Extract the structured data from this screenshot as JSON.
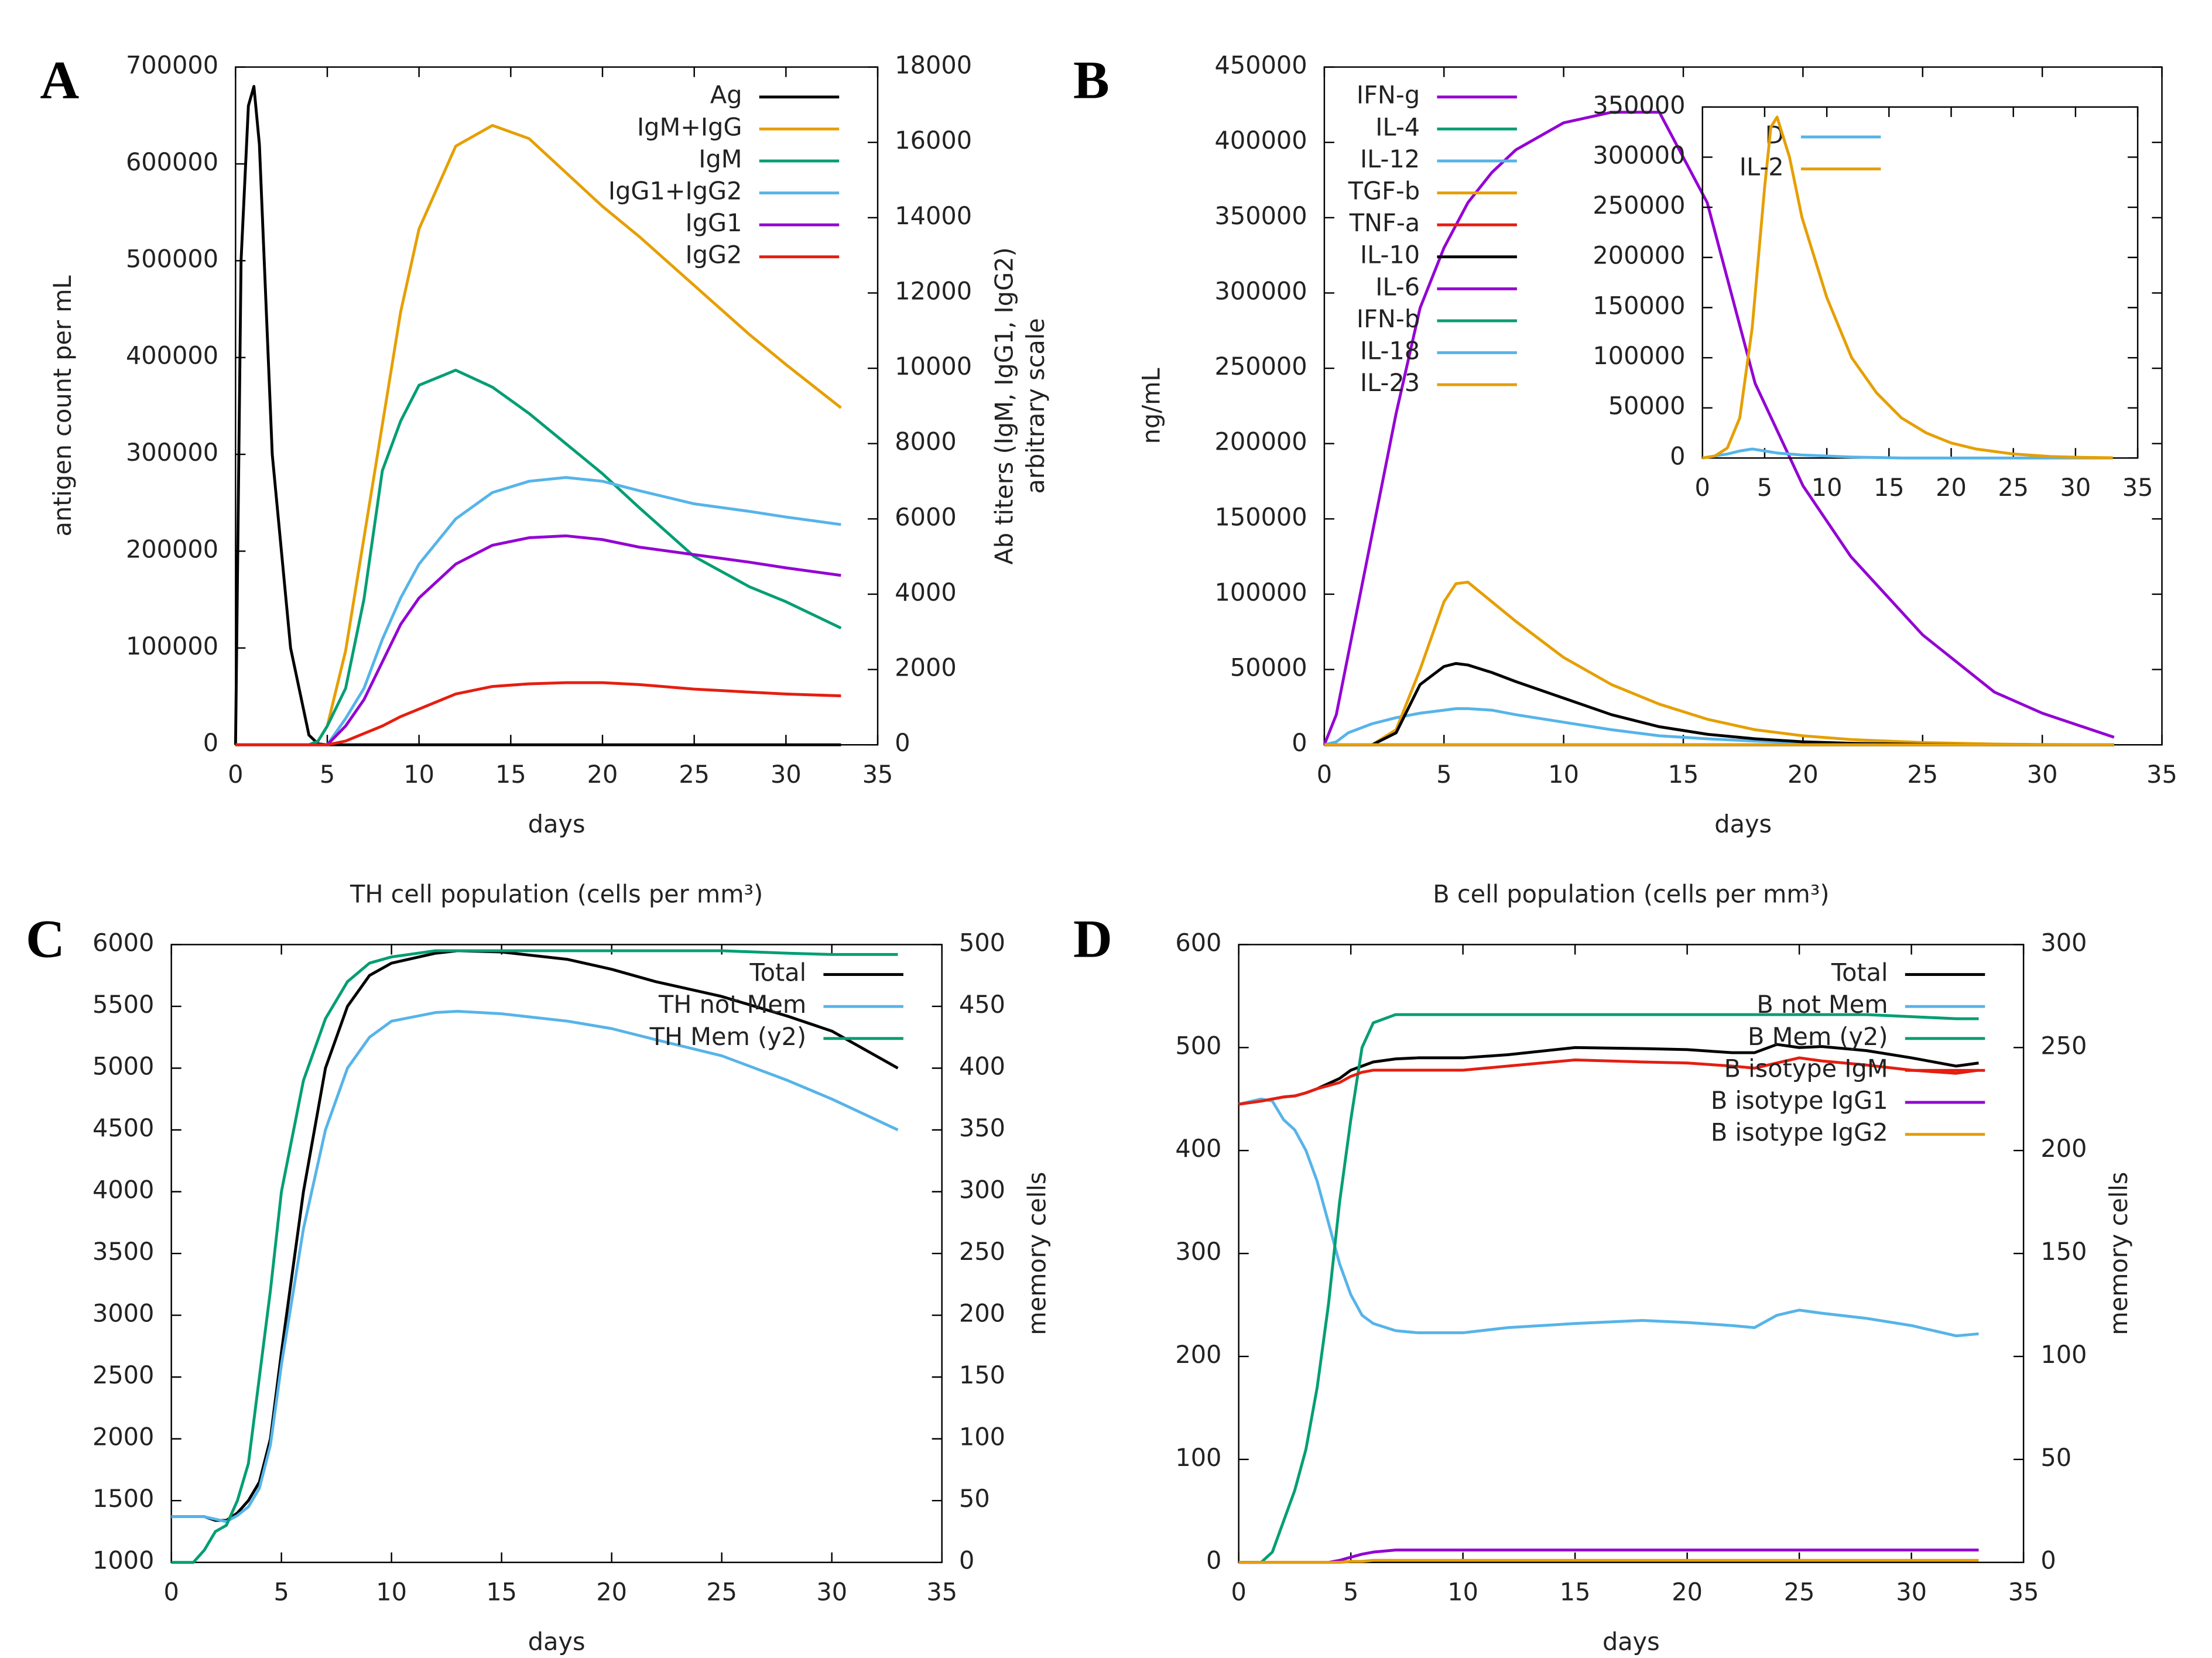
{
  "chart_data": [
    {
      "type": "line",
      "label": "A",
      "xlabel": "days",
      "ylabel": "antigen count per mL",
      "y2label": [
        "Ab titers (IgM, IgG1, IgG2)",
        "arbitrary scale"
      ],
      "legend": "upper right",
      "x": [
        0,
        0.3,
        0.7,
        1,
        1.3,
        2,
        3,
        4,
        4.5,
        5,
        6,
        7,
        8,
        9,
        10,
        12,
        14,
        16,
        18,
        20,
        22,
        25,
        28,
        30,
        33
      ],
      "xlim": [
        0,
        35
      ],
      "xticks": [
        0,
        5,
        10,
        15,
        20,
        25,
        30,
        35
      ],
      "ylim": [
        0,
        700000
      ],
      "yticks": [
        0,
        100000,
        200000,
        300000,
        400000,
        500000,
        600000,
        700000
      ],
      "y2lim": [
        0,
        18000
      ],
      "y2ticks": [
        0,
        2000,
        4000,
        6000,
        8000,
        10000,
        12000,
        14000,
        16000,
        18000
      ],
      "series": [
        {
          "name": "Ag",
          "color": "#000000",
          "values": [
            0,
            500000,
            660000,
            680000,
            620000,
            300000,
            100000,
            10000,
            1000,
            0,
            0,
            0,
            0,
            0,
            0,
            0,
            0,
            0,
            0,
            0,
            0,
            0,
            0,
            0,
            0
          ]
        },
        {
          "name": "IgM+IgG",
          "color": "#e69f00",
          "axis": "y2",
          "values": [
            0,
            0,
            0,
            0,
            0,
            0,
            0,
            0,
            100,
            500,
            2500,
            5500,
            8500,
            11500,
            13700,
            15900,
            16450,
            16100,
            15200,
            14300,
            13500,
            12200,
            10900,
            10100,
            8950
          ]
        },
        {
          "name": "IgM",
          "color": "#009e73",
          "axis": "y2",
          "values": [
            0,
            0,
            0,
            0,
            0,
            0,
            0,
            0,
            100,
            500,
            1500,
            3870,
            7280,
            8600,
            9550,
            9950,
            9500,
            8800,
            8000,
            7200,
            6300,
            5000,
            4200,
            3800,
            3100
          ]
        },
        {
          "name": "IgG1+IgG2",
          "color": "#56b4e9",
          "axis": "y2",
          "values": [
            0,
            0,
            0,
            0,
            0,
            0,
            0,
            0,
            0,
            0,
            700,
            1500,
            2800,
            3900,
            4800,
            6000,
            6700,
            7000,
            7100,
            7000,
            6750,
            6400,
            6200,
            6050,
            5850
          ]
        },
        {
          "name": "IgG1",
          "color": "#9400d3",
          "axis": "y2",
          "values": [
            0,
            0,
            0,
            0,
            0,
            0,
            0,
            0,
            0,
            0,
            500,
            1200,
            2200,
            3200,
            3900,
            4800,
            5300,
            5500,
            5550,
            5450,
            5250,
            5050,
            4850,
            4700,
            4500
          ]
        },
        {
          "name": "IgG2",
          "color": "#e51e10",
          "axis": "y2",
          "values": [
            0,
            0,
            0,
            0,
            0,
            0,
            0,
            0,
            0,
            0,
            100,
            300,
            500,
            750,
            950,
            1350,
            1550,
            1620,
            1650,
            1650,
            1600,
            1480,
            1400,
            1350,
            1300
          ]
        }
      ]
    },
    {
      "type": "line",
      "label": "B",
      "xlabel": "days",
      "ylabel": "ng/mL",
      "legend": "upper left",
      "x": [
        0,
        0.5,
        1,
        2,
        3,
        4,
        5,
        5.5,
        6,
        7,
        8,
        10,
        12,
        14,
        16,
        18,
        20,
        22,
        25,
        28,
        30,
        33
      ],
      "xlim": [
        0,
        35
      ],
      "xticks": [
        0,
        5,
        10,
        15,
        20,
        25,
        30,
        35
      ],
      "ylim": [
        0,
        450000
      ],
      "yticks": [
        0,
        50000,
        100000,
        150000,
        200000,
        250000,
        300000,
        350000,
        400000,
        450000
      ],
      "series": [
        {
          "name": "IFN-g",
          "color": "#9400d3",
          "values": [
            0,
            20000,
            60000,
            140000,
            220000,
            290000,
            330000,
            345000,
            360000,
            380000,
            395000,
            413000,
            420000,
            420000,
            360000,
            240000,
            172000,
            125000,
            73000,
            35000,
            21000,
            5000
          ]
        },
        {
          "name": "IL-4",
          "color": "#009e73",
          "values": [
            0,
            0,
            0,
            0,
            0,
            0,
            0,
            0,
            0,
            0,
            0,
            0,
            0,
            0,
            0,
            0,
            0,
            0,
            0,
            0,
            0,
            0
          ]
        },
        {
          "name": "IL-12",
          "color": "#56b4e9",
          "values": [
            0,
            2000,
            8000,
            14000,
            18000,
            21000,
            23000,
            24000,
            24000,
            23000,
            20000,
            15000,
            10000,
            6000,
            4000,
            2500,
            1500,
            800,
            300,
            100,
            0,
            0
          ]
        },
        {
          "name": "TGF-b",
          "color": "#e69f00",
          "values": [
            0,
            0,
            0,
            0,
            10000,
            50000,
            95000,
            107000,
            108000,
            95000,
            82000,
            58000,
            40000,
            27000,
            17000,
            10000,
            6000,
            3500,
            1500,
            500,
            200,
            0
          ]
        },
        {
          "name": "TNF-a",
          "color": "#e51e10",
          "values": [
            0,
            0,
            0,
            0,
            0,
            0,
            0,
            0,
            0,
            0,
            0,
            0,
            0,
            0,
            0,
            0,
            0,
            0,
            0,
            0,
            0,
            0
          ]
        },
        {
          "name": "IL-10",
          "color": "#000000",
          "values": [
            0,
            0,
            0,
            0,
            8000,
            40000,
            52000,
            54000,
            53000,
            48000,
            42000,
            31000,
            20000,
            12000,
            7000,
            4000,
            2000,
            1000,
            300,
            0,
            0,
            0
          ]
        },
        {
          "name": "IL-6",
          "color": "#9400d3",
          "values": [
            0,
            0,
            0,
            0,
            0,
            0,
            0,
            0,
            0,
            0,
            0,
            0,
            0,
            0,
            0,
            0,
            0,
            0,
            0,
            0,
            0,
            0
          ]
        },
        {
          "name": "IFN-b",
          "color": "#009e73",
          "values": [
            0,
            0,
            0,
            0,
            0,
            0,
            0,
            0,
            0,
            0,
            0,
            0,
            0,
            0,
            0,
            0,
            0,
            0,
            0,
            0,
            0,
            0
          ]
        },
        {
          "name": "IL-18",
          "color": "#56b4e9",
          "values": [
            0,
            0,
            0,
            0,
            0,
            0,
            0,
            0,
            0,
            0,
            0,
            0,
            0,
            0,
            0,
            0,
            0,
            0,
            0,
            0,
            0,
            0
          ]
        },
        {
          "name": "IL-23",
          "color": "#e69f00",
          "values": [
            0,
            0,
            0,
            0,
            0,
            0,
            0,
            0,
            0,
            0,
            0,
            0,
            0,
            0,
            0,
            0,
            0,
            0,
            0,
            0,
            0,
            0
          ]
        }
      ]
    },
    {
      "type": "line",
      "legend": "upper left",
      "x": [
        0,
        1,
        2,
        3,
        4,
        5,
        5.5,
        6,
        7,
        8,
        10,
        12,
        14,
        16,
        18,
        20,
        22,
        25,
        28,
        30,
        33
      ],
      "xlim": [
        0,
        35
      ],
      "xticks": [
        0,
        5,
        10,
        15,
        20,
        25,
        30,
        35
      ],
      "ylim": [
        0,
        350000
      ],
      "yticks": [
        0,
        50000,
        100000,
        150000,
        200000,
        250000,
        300000,
        350000
      ],
      "series": [
        {
          "name": "D",
          "color": "#56b4e9",
          "values": [
            0,
            2000,
            4000,
            7000,
            9000,
            7000,
            6000,
            5000,
            4000,
            3000,
            2000,
            1000,
            500,
            0,
            0,
            0,
            0,
            0,
            0,
            0,
            0
          ]
        },
        {
          "name": "IL-2",
          "color": "#e69f00",
          "values": [
            0,
            2000,
            10000,
            40000,
            130000,
            270000,
            330000,
            340000,
            300000,
            240000,
            160000,
            100000,
            65000,
            40000,
            25000,
            15000,
            9000,
            4000,
            1500,
            800,
            200
          ]
        }
      ]
    },
    {
      "type": "line",
      "label": "C",
      "title": "TH cell population (cells per mm³)",
      "xlabel": "days",
      "y2label": [
        "memory cells"
      ],
      "legend": "upper right",
      "x": [
        0,
        1,
        1.5,
        2,
        2.5,
        3,
        3.5,
        4,
        4.5,
        5,
        6,
        7,
        8,
        9,
        10,
        12,
        13,
        15,
        18,
        20,
        22,
        25,
        28,
        30,
        33
      ],
      "xlim": [
        0,
        35
      ],
      "xticks": [
        0,
        5,
        10,
        15,
        20,
        25,
        30,
        35
      ],
      "ylim": [
        1000,
        6000
      ],
      "yticks": [
        1000,
        1500,
        2000,
        2500,
        3000,
        3500,
        4000,
        4500,
        5000,
        5500,
        6000
      ],
      "y2lim": [
        0,
        500
      ],
      "y2ticks": [
        0,
        50,
        100,
        150,
        200,
        250,
        300,
        350,
        400,
        450,
        500
      ],
      "series": [
        {
          "name": "Total",
          "color": "#000000",
          "values": [
            1370,
            1370,
            1370,
            1340,
            1340,
            1400,
            1500,
            1650,
            2000,
            2700,
            4000,
            5000,
            5500,
            5750,
            5850,
            5930,
            5950,
            5940,
            5880,
            5800,
            5700,
            5580,
            5420,
            5300,
            5000
          ]
        },
        {
          "name": "TH not Mem",
          "color": "#56b4e9",
          "values": [
            1370,
            1370,
            1370,
            1350,
            1330,
            1380,
            1450,
            1600,
            1950,
            2600,
            3700,
            4500,
            5000,
            5250,
            5380,
            5450,
            5460,
            5440,
            5380,
            5320,
            5230,
            5100,
            4900,
            4750,
            4500
          ]
        },
        {
          "name": "TH Mem (y2)",
          "color": "#009e73",
          "axis": "y2",
          "values": [
            0,
            0,
            10,
            25,
            30,
            50,
            80,
            150,
            220,
            300,
            390,
            440,
            470,
            485,
            490,
            495,
            495,
            495,
            495,
            495,
            495,
            495,
            493,
            492,
            492
          ]
        }
      ]
    },
    {
      "type": "line",
      "label": "D",
      "title": "B cell population (cells per mm³)",
      "xlabel": "days",
      "y2label": [
        "memory cells"
      ],
      "legend": "upper right",
      "x": [
        0,
        1,
        1.5,
        2,
        2.5,
        3,
        3.5,
        4,
        4.5,
        5,
        5.5,
        6,
        7,
        8,
        10,
        12,
        15,
        18,
        20,
        22,
        23,
        24,
        25,
        26,
        28,
        30,
        32,
        33
      ],
      "xlim": [
        0,
        35
      ],
      "xticks": [
        0,
        5,
        10,
        15,
        20,
        25,
        30,
        35
      ],
      "ylim": [
        0,
        600
      ],
      "yticks": [
        0,
        100,
        200,
        300,
        400,
        500,
        600
      ],
      "y2lim": [
        0,
        300
      ],
      "y2ticks": [
        0,
        50,
        100,
        150,
        200,
        250,
        300
      ],
      "series": [
        {
          "name": "Total",
          "color": "#000000",
          "values": [
            445,
            448,
            450,
            452,
            453,
            456,
            460,
            465,
            470,
            478,
            482,
            486,
            489,
            490,
            490,
            493,
            500,
            499,
            498,
            495,
            495,
            503,
            500,
            501,
            497,
            490,
            482,
            485
          ]
        },
        {
          "name": "B not Mem",
          "color": "#56b4e9",
          "values": [
            445,
            450,
            448,
            430,
            420,
            400,
            370,
            330,
            290,
            260,
            240,
            232,
            225,
            223,
            223,
            228,
            232,
            235,
            233,
            230,
            228,
            240,
            245,
            242,
            237,
            230,
            220,
            222
          ]
        },
        {
          "name": "B Mem (y2)",
          "color": "#009e73",
          "axis": "y2",
          "values": [
            0,
            0,
            5,
            20,
            35,
            55,
            85,
            125,
            175,
            215,
            250,
            262,
            266,
            266,
            266,
            266,
            266,
            266,
            266,
            266,
            266,
            266,
            266,
            266,
            266,
            265,
            264,
            264
          ]
        },
        {
          "name": "B isotype IgM",
          "color": "#e51e10",
          "values": [
            445,
            448,
            450,
            452,
            453,
            456,
            460,
            463,
            466,
            472,
            476,
            478,
            478,
            478,
            478,
            482,
            488,
            486,
            485,
            482,
            480,
            485,
            490,
            487,
            483,
            478,
            475,
            478
          ]
        },
        {
          "name": "B isotype IgG1",
          "color": "#9400d3",
          "values": [
            0,
            0,
            0,
            0,
            0,
            0,
            0,
            0,
            2,
            5,
            8,
            10,
            12,
            12,
            12,
            12,
            12,
            12,
            12,
            12,
            12,
            12,
            12,
            12,
            12,
            12,
            12,
            12
          ]
        },
        {
          "name": "B isotype IgG2",
          "color": "#e69f00",
          "values": [
            0,
            0,
            0,
            0,
            0,
            0,
            0,
            0,
            0,
            1,
            1,
            2,
            2,
            2,
            2,
            2,
            2,
            2,
            2,
            2,
            2,
            2,
            2,
            2,
            2,
            2,
            2,
            2
          ]
        }
      ]
    }
  ]
}
